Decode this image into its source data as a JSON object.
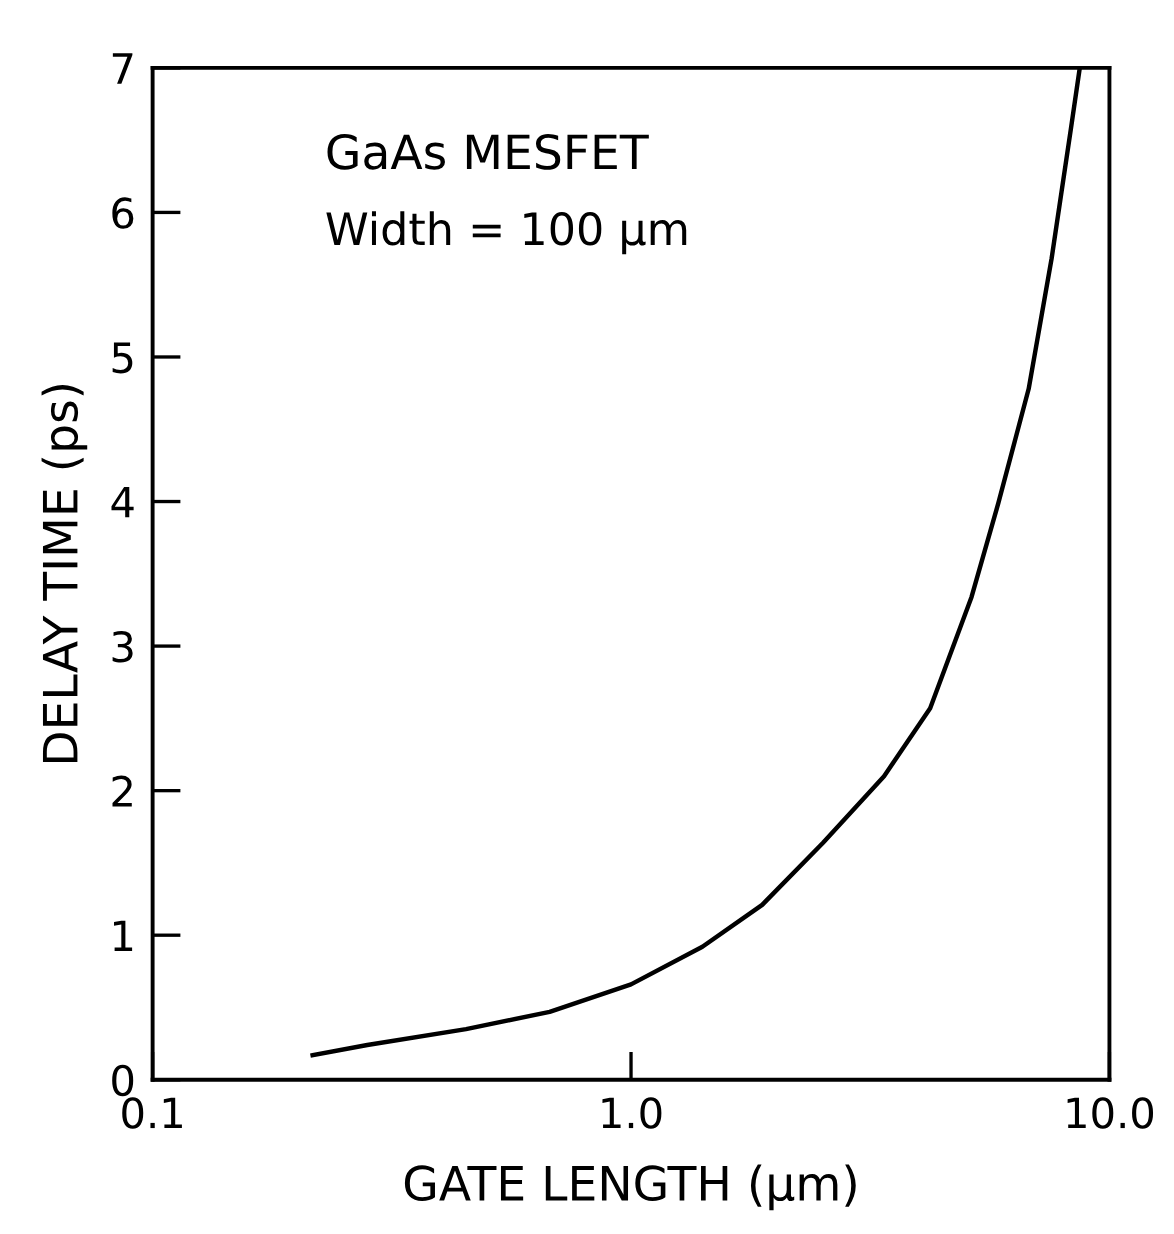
{
  "chart_data": {
    "type": "line",
    "log": "x",
    "xlabel": "GATE LENGTH (μm)",
    "ylabel": "DELAY TIME (ps)",
    "annotations": [
      "GaAs MESFET",
      "Width = 100 μm"
    ],
    "x": [
      0.216,
      0.281,
      0.452,
      0.676,
      1.0,
      1.41,
      1.88,
      2.52,
      3.38,
      4.22,
      5.15,
      5.86,
      6.78,
      7.57,
      8.3,
      8.67
    ],
    "series": [
      {
        "color": "#000000",
        "values": [
          0.17,
          0.24,
          0.35,
          0.47,
          0.66,
          0.92,
          1.21,
          1.64,
          2.1,
          2.57,
          3.34,
          3.99,
          4.78,
          5.68,
          6.57,
          7.0
        ]
      }
    ],
    "xlim": [
      0.1,
      10
    ],
    "ylim": [
      0,
      7
    ],
    "xticks": [
      0.1,
      {
        "value": 1,
        "label": "1.0"
      },
      {
        "value": 10,
        "label": "10.0"
      }
    ],
    "yticks": [
      0,
      1,
      2,
      3,
      4,
      5,
      6,
      7
    ],
    "grid": false,
    "legend": false,
    "marker": "none",
    "line_style": "solid"
  }
}
